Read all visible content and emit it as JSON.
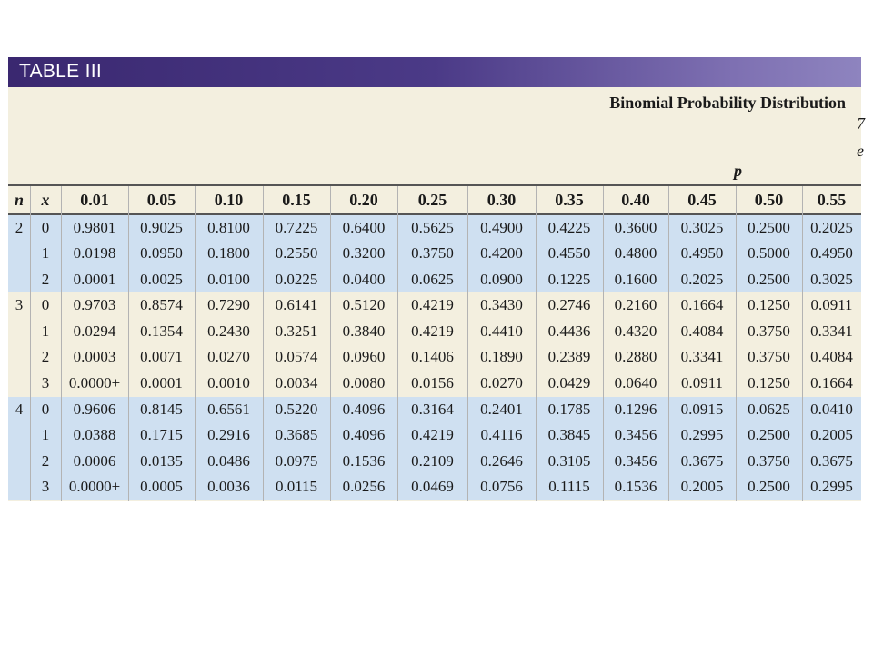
{
  "banner": {
    "title": "TABLE III"
  },
  "distribution_title": "Binomial Probability Distribution",
  "clipped_edge_text": "7\ne",
  "p_label": "p",
  "columns": {
    "n": "n",
    "x": "x",
    "p_values": [
      "0.01",
      "0.05",
      "0.10",
      "0.15",
      "0.20",
      "0.25",
      "0.30",
      "0.35",
      "0.40",
      "0.45",
      "0.50",
      "0.55"
    ]
  },
  "groups": [
    {
      "n": "2",
      "shade": "blue",
      "rows": [
        {
          "x": "0",
          "values": [
            "0.9801",
            "0.9025",
            "0.8100",
            "0.7225",
            "0.6400",
            "0.5625",
            "0.4900",
            "0.4225",
            "0.3600",
            "0.3025",
            "0.2500",
            "0.2025"
          ]
        },
        {
          "x": "1",
          "values": [
            "0.0198",
            "0.0950",
            "0.1800",
            "0.2550",
            "0.3200",
            "0.3750",
            "0.4200",
            "0.4550",
            "0.4800",
            "0.4950",
            "0.5000",
            "0.4950"
          ]
        },
        {
          "x": "2",
          "values": [
            "0.0001",
            "0.0025",
            "0.0100",
            "0.0225",
            "0.0400",
            "0.0625",
            "0.0900",
            "0.1225",
            "0.1600",
            "0.2025",
            "0.2500",
            "0.3025"
          ]
        }
      ]
    },
    {
      "n": "3",
      "shade": "cream",
      "rows": [
        {
          "x": "0",
          "values": [
            "0.9703",
            "0.8574",
            "0.7290",
            "0.6141",
            "0.5120",
            "0.4219",
            "0.3430",
            "0.2746",
            "0.2160",
            "0.1664",
            "0.1250",
            "0.0911"
          ]
        },
        {
          "x": "1",
          "values": [
            "0.0294",
            "0.1354",
            "0.2430",
            "0.3251",
            "0.3840",
            "0.4219",
            "0.4410",
            "0.4436",
            "0.4320",
            "0.4084",
            "0.3750",
            "0.3341"
          ]
        },
        {
          "x": "2",
          "values": [
            "0.0003",
            "0.0071",
            "0.0270",
            "0.0574",
            "0.0960",
            "0.1406",
            "0.1890",
            "0.2389",
            "0.2880",
            "0.3341",
            "0.3750",
            "0.4084"
          ]
        },
        {
          "x": "3",
          "values": [
            "0.0000+",
            "0.0001",
            "0.0010",
            "0.0034",
            "0.0080",
            "0.0156",
            "0.0270",
            "0.0429",
            "0.0640",
            "0.0911",
            "0.1250",
            "0.1664"
          ]
        }
      ]
    },
    {
      "n": "4",
      "shade": "blue",
      "rows": [
        {
          "x": "0",
          "values": [
            "0.9606",
            "0.8145",
            "0.6561",
            "0.5220",
            "0.4096",
            "0.3164",
            "0.2401",
            "0.1785",
            "0.1296",
            "0.0915",
            "0.0625",
            "0.0410"
          ]
        },
        {
          "x": "1",
          "values": [
            "0.0388",
            "0.1715",
            "0.2916",
            "0.3685",
            "0.4096",
            "0.4219",
            "0.4116",
            "0.3845",
            "0.3456",
            "0.2995",
            "0.2500",
            "0.2005"
          ]
        },
        {
          "x": "2",
          "values": [
            "0.0006",
            "0.0135",
            "0.0486",
            "0.0975",
            "0.1536",
            "0.2109",
            "0.2646",
            "0.3105",
            "0.3456",
            "0.3675",
            "0.3750",
            "0.3675"
          ]
        },
        {
          "x": "3",
          "values": [
            "0.0000+",
            "0.0005",
            "0.0036",
            "0.0115",
            "0.0256",
            "0.0469",
            "0.0756",
            "0.1115",
            "0.1536",
            "0.2005",
            "0.2500",
            "0.2995"
          ]
        }
      ]
    }
  ],
  "colors": {
    "banner_start": "#3a2870",
    "banner_end": "#8e84bf",
    "cream": "#f3efdf",
    "blue": "#cfe0f1"
  }
}
